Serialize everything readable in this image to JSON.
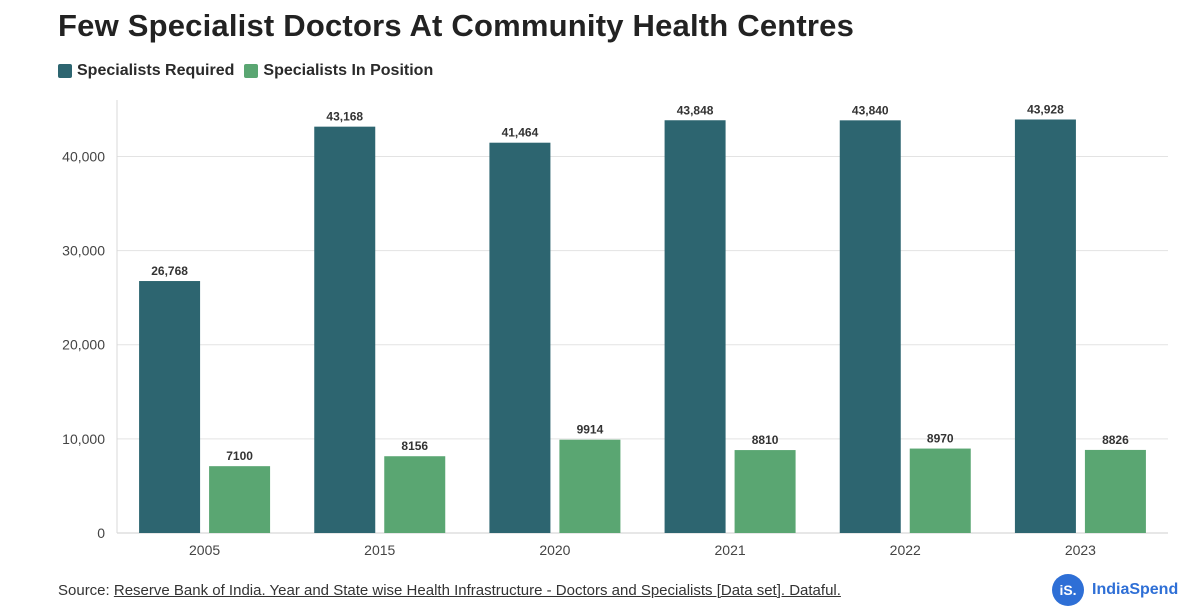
{
  "chart_data": {
    "type": "bar",
    "title": "Few Specialist Doctors At Community Health Centres",
    "categories": [
      "2005",
      "2015",
      "2020",
      "2021",
      "2022",
      "2023"
    ],
    "series": [
      {
        "name": "Specialists Required",
        "color": "#2d6570",
        "values": [
          26768,
          43168,
          41464,
          43848,
          43840,
          43928
        ],
        "labels": [
          "26,768",
          "43,168",
          "41,464",
          "43,848",
          "43,840",
          "43,928"
        ]
      },
      {
        "name": "Specialists In Position",
        "color": "#5aa672",
        "values": [
          7100,
          8156,
          9914,
          8810,
          8970,
          8826
        ],
        "labels": [
          "7100",
          "8156",
          "9914",
          "8810",
          "8970",
          "8826"
        ]
      }
    ],
    "yticks": [
      0,
      10000,
      20000,
      30000,
      40000
    ],
    "ytick_labels": [
      "0",
      "10,000",
      "20,000",
      "30,000",
      "40,000"
    ],
    "ylim": [
      0,
      46000
    ],
    "xlabel": "",
    "ylabel": "",
    "grid": true,
    "legend_position": "top-left"
  },
  "footer": {
    "source_prefix": "Source:",
    "source_text": "Reserve Bank of India. Year and State wise Health Infrastructure - Doctors and Specialists [Data set]. Dataful."
  },
  "brand": {
    "logo_text": "iS.",
    "name": "IndiaSpend"
  }
}
